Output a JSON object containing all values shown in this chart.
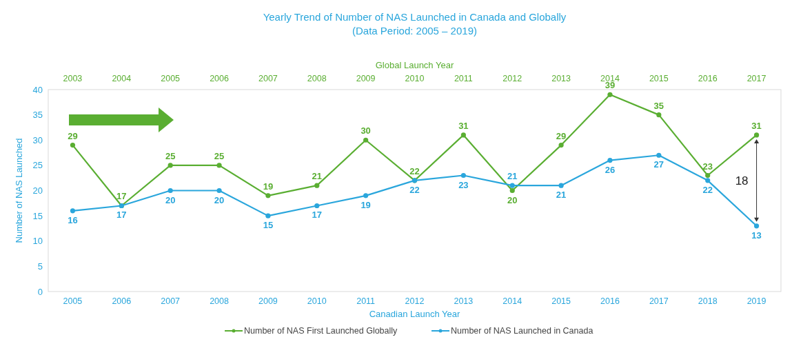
{
  "chart_data": {
    "type": "line",
    "title": "Yearly Trend of Number of NAS Launched in Canada and Globally",
    "subtitle": "(Data Period: 2005 – 2019)",
    "xlabel": "Canadian Launch Year",
    "x2label": "Global Launch Year",
    "ylabel": "Number of NAS Launched",
    "x": [
      2005,
      2006,
      2007,
      2008,
      2009,
      2010,
      2011,
      2012,
      2013,
      2014,
      2015,
      2016,
      2017,
      2018,
      2019
    ],
    "xlim": [
      2004.5,
      2019.5
    ],
    "xticks": [
      2005,
      2006,
      2007,
      2008,
      2009,
      2010,
      2011,
      2012,
      2013,
      2014,
      2015,
      2016,
      2017,
      2018,
      2019
    ],
    "x2lim": [
      2002.5,
      2017.5
    ],
    "x2ticks": [
      2003,
      2004,
      2005,
      2006,
      2007,
      2008,
      2009,
      2010,
      2011,
      2012,
      2013,
      2014,
      2015,
      2016,
      2017
    ],
    "ylim": [
      0,
      40
    ],
    "yticks": [
      0,
      5,
      10,
      15,
      20,
      25,
      30,
      35,
      40
    ],
    "series": [
      {
        "name": "Number of NAS First Launched Globally",
        "color": "#5aae32",
        "values": [
          29,
          17,
          25,
          25,
          19,
          21,
          30,
          22,
          31,
          20,
          29,
          39,
          35,
          23,
          31
        ]
      },
      {
        "name": "Number of NAS Launched in Canada",
        "color": "#2aa6dc",
        "values": [
          16,
          17,
          20,
          20,
          15,
          17,
          19,
          22,
          23,
          21,
          21,
          26,
          27,
          22,
          13
        ]
      }
    ],
    "data_labels": true,
    "marker": "circle",
    "line_style": "solid",
    "grid": false,
    "legend": "bottom",
    "annotations": [
      "18"
    ]
  }
}
